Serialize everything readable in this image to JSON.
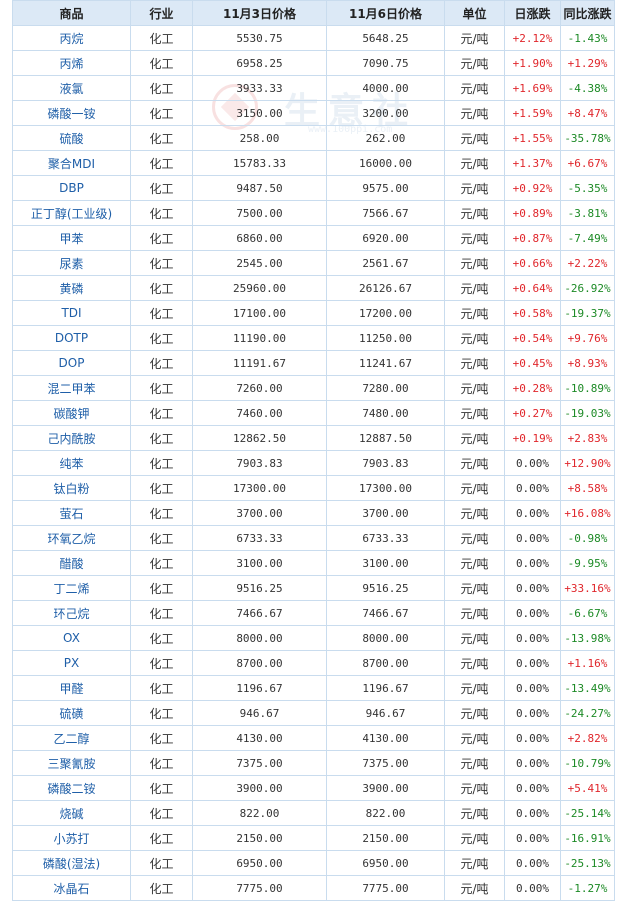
{
  "watermark": {
    "text": "生意社",
    "url": "www.100ppi.com"
  },
  "table": {
    "headers": [
      "商品",
      "行业",
      "11月3日价格",
      "11月6日价格",
      "单位",
      "日涨跌",
      "同比涨跌"
    ],
    "rows": [
      [
        "丙烷",
        "化工",
        "5530.75",
        "5648.25",
        "元/吨",
        "+2.12%",
        "-1.43%"
      ],
      [
        "丙烯",
        "化工",
        "6958.25",
        "7090.75",
        "元/吨",
        "+1.90%",
        "+1.29%"
      ],
      [
        "液氯",
        "化工",
        "3933.33",
        "4000.00",
        "元/吨",
        "+1.69%",
        "-4.38%"
      ],
      [
        "磷酸一铵",
        "化工",
        "3150.00",
        "3200.00",
        "元/吨",
        "+1.59%",
        "+8.47%"
      ],
      [
        "硫酸",
        "化工",
        "258.00",
        "262.00",
        "元/吨",
        "+1.55%",
        "-35.78%"
      ],
      [
        "聚合MDI",
        "化工",
        "15783.33",
        "16000.00",
        "元/吨",
        "+1.37%",
        "+6.67%"
      ],
      [
        "DBP",
        "化工",
        "9487.50",
        "9575.00",
        "元/吨",
        "+0.92%",
        "-5.35%"
      ],
      [
        "正丁醇(工业级)",
        "化工",
        "7500.00",
        "7566.67",
        "元/吨",
        "+0.89%",
        "-3.81%"
      ],
      [
        "甲苯",
        "化工",
        "6860.00",
        "6920.00",
        "元/吨",
        "+0.87%",
        "-7.49%"
      ],
      [
        "尿素",
        "化工",
        "2545.00",
        "2561.67",
        "元/吨",
        "+0.66%",
        "+2.22%"
      ],
      [
        "黄磷",
        "化工",
        "25960.00",
        "26126.67",
        "元/吨",
        "+0.64%",
        "-26.92%"
      ],
      [
        "TDI",
        "化工",
        "17100.00",
        "17200.00",
        "元/吨",
        "+0.58%",
        "-19.37%"
      ],
      [
        "DOTP",
        "化工",
        "11190.00",
        "11250.00",
        "元/吨",
        "+0.54%",
        "+9.76%"
      ],
      [
        "DOP",
        "化工",
        "11191.67",
        "11241.67",
        "元/吨",
        "+0.45%",
        "+8.93%"
      ],
      [
        "混二甲苯",
        "化工",
        "7260.00",
        "7280.00",
        "元/吨",
        "+0.28%",
        "-10.89%"
      ],
      [
        "碳酸钾",
        "化工",
        "7460.00",
        "7480.00",
        "元/吨",
        "+0.27%",
        "-19.03%"
      ],
      [
        "己内酰胺",
        "化工",
        "12862.50",
        "12887.50",
        "元/吨",
        "+0.19%",
        "+2.83%"
      ],
      [
        "纯苯",
        "化工",
        "7903.83",
        "7903.83",
        "元/吨",
        "0.00%",
        "+12.90%"
      ],
      [
        "钛白粉",
        "化工",
        "17300.00",
        "17300.00",
        "元/吨",
        "0.00%",
        "+8.58%"
      ],
      [
        "萤石",
        "化工",
        "3700.00",
        "3700.00",
        "元/吨",
        "0.00%",
        "+16.08%"
      ],
      [
        "环氧乙烷",
        "化工",
        "6733.33",
        "6733.33",
        "元/吨",
        "0.00%",
        "-0.98%"
      ],
      [
        "醋酸",
        "化工",
        "3100.00",
        "3100.00",
        "元/吨",
        "0.00%",
        "-9.95%"
      ],
      [
        "丁二烯",
        "化工",
        "9516.25",
        "9516.25",
        "元/吨",
        "0.00%",
        "+33.16%"
      ],
      [
        "环己烷",
        "化工",
        "7466.67",
        "7466.67",
        "元/吨",
        "0.00%",
        "-6.67%"
      ],
      [
        "OX",
        "化工",
        "8000.00",
        "8000.00",
        "元/吨",
        "0.00%",
        "-13.98%"
      ],
      [
        "PX",
        "化工",
        "8700.00",
        "8700.00",
        "元/吨",
        "0.00%",
        "+1.16%"
      ],
      [
        "甲醛",
        "化工",
        "1196.67",
        "1196.67",
        "元/吨",
        "0.00%",
        "-13.49%"
      ],
      [
        "硫磺",
        "化工",
        "946.67",
        "946.67",
        "元/吨",
        "0.00%",
        "-24.27%"
      ],
      [
        "乙二醇",
        "化工",
        "4130.00",
        "4130.00",
        "元/吨",
        "0.00%",
        "+2.82%"
      ],
      [
        "三聚氰胺",
        "化工",
        "7375.00",
        "7375.00",
        "元/吨",
        "0.00%",
        "-10.79%"
      ],
      [
        "磷酸二铵",
        "化工",
        "3900.00",
        "3900.00",
        "元/吨",
        "0.00%",
        "+5.41%"
      ],
      [
        "烧碱",
        "化工",
        "822.00",
        "822.00",
        "元/吨",
        "0.00%",
        "-25.14%"
      ],
      [
        "小苏打",
        "化工",
        "2150.00",
        "2150.00",
        "元/吨",
        "0.00%",
        "-16.91%"
      ],
      [
        "磷酸(湿法)",
        "化工",
        "6950.00",
        "6950.00",
        "元/吨",
        "0.00%",
        "-25.13%"
      ],
      [
        "冰晶石",
        "化工",
        "7775.00",
        "7775.00",
        "元/吨",
        "0.00%",
        "-1.27%"
      ]
    ]
  },
  "colors": {
    "up": "#e0262b",
    "down": "#1c8a25",
    "name": "#1f5fa8",
    "header_bg": "#dce9f6",
    "border": "#c9dcee"
  }
}
